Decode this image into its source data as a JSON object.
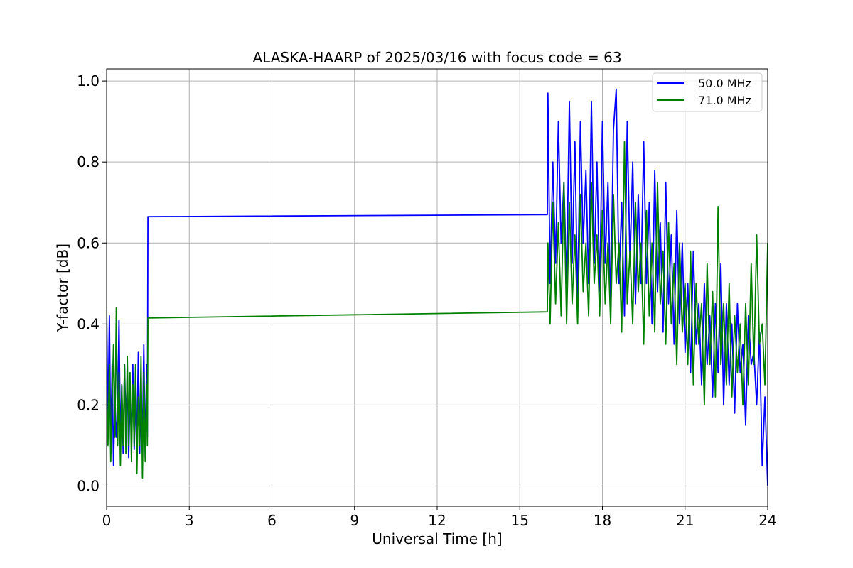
{
  "chart_data": {
    "type": "line",
    "title": "ALASKA-HAARP of 2025/03/16 with focus code = 63",
    "xlabel": "Universal Time [h]",
    "ylabel": "Y-factor [dB]",
    "xlim": [
      0,
      24
    ],
    "ylim": [
      -0.05,
      1.03
    ],
    "xticks": [
      0,
      3,
      6,
      9,
      12,
      15,
      18,
      21,
      24
    ],
    "xtick_labels": [
      "0",
      "3",
      "6",
      "9",
      "12",
      "15",
      "18",
      "21",
      "24"
    ],
    "yticks": [
      0.0,
      0.2,
      0.4,
      0.6,
      0.8,
      1.0
    ],
    "ytick_labels": [
      "0.0",
      "0.2",
      "0.4",
      "0.6",
      "0.8",
      "1.0"
    ],
    "grid": true,
    "legend_position": "top-right",
    "series": [
      {
        "name": "50.0 MHz",
        "color": "#0000ff",
        "x": [
          0.0,
          0.05,
          0.1,
          0.15,
          0.2,
          0.25,
          0.3,
          0.35,
          0.4,
          0.45,
          0.5,
          0.55,
          0.6,
          0.65,
          0.7,
          0.75,
          0.8,
          0.85,
          0.9,
          0.95,
          1.0,
          1.05,
          1.1,
          1.15,
          1.2,
          1.25,
          1.3,
          1.35,
          1.4,
          1.45,
          1.48,
          1.5,
          1.52,
          16.0,
          16.02,
          16.1,
          16.2,
          16.3,
          16.4,
          16.5,
          16.6,
          16.7,
          16.8,
          16.9,
          17.0,
          17.1,
          17.2,
          17.3,
          17.4,
          17.5,
          17.6,
          17.7,
          17.8,
          17.9,
          18.0,
          18.1,
          18.2,
          18.3,
          18.4,
          18.5,
          18.6,
          18.7,
          18.8,
          18.9,
          19.0,
          19.1,
          19.2,
          19.3,
          19.4,
          19.5,
          19.6,
          19.7,
          19.8,
          19.9,
          20.0,
          20.1,
          20.2,
          20.3,
          20.4,
          20.5,
          20.6,
          20.7,
          20.8,
          20.9,
          21.0,
          21.1,
          21.2,
          21.3,
          21.4,
          21.5,
          21.6,
          21.7,
          21.8,
          21.9,
          22.0,
          22.1,
          22.2,
          22.3,
          22.4,
          22.5,
          22.6,
          22.7,
          22.8,
          22.9,
          23.0,
          23.1,
          23.2,
          23.3,
          23.4,
          23.5,
          23.6,
          23.7,
          23.8,
          23.9,
          24.0
        ],
        "y": [
          0.44,
          0.15,
          0.42,
          0.1,
          0.3,
          0.05,
          0.22,
          0.12,
          0.18,
          0.41,
          0.1,
          0.25,
          0.08,
          0.3,
          0.15,
          0.28,
          0.07,
          0.22,
          0.12,
          0.3,
          0.09,
          0.2,
          0.12,
          0.33,
          0.08,
          0.25,
          0.1,
          0.35,
          0.07,
          0.3,
          0.12,
          0.665,
          0.665,
          0.67,
          0.97,
          0.5,
          0.8,
          0.55,
          0.9,
          0.6,
          0.75,
          0.5,
          0.95,
          0.55,
          0.85,
          0.45,
          0.9,
          0.6,
          0.78,
          0.5,
          0.95,
          0.55,
          0.8,
          0.48,
          0.9,
          0.55,
          0.75,
          0.45,
          0.88,
          0.98,
          0.5,
          0.7,
          0.42,
          0.9,
          0.55,
          0.8,
          0.45,
          0.72,
          0.5,
          0.85,
          0.5,
          0.7,
          0.4,
          0.78,
          0.48,
          0.65,
          0.38,
          0.75,
          0.45,
          0.62,
          0.35,
          0.68,
          0.4,
          0.6,
          0.33,
          0.5,
          0.28,
          0.58,
          0.35,
          0.45,
          0.25,
          0.5,
          0.3,
          0.42,
          0.22,
          0.45,
          0.28,
          0.55,
          0.2,
          0.45,
          0.25,
          0.4,
          0.18,
          0.45,
          0.28,
          0.35,
          0.15,
          0.42,
          0.3,
          0.33,
          0.2,
          0.38,
          0.05,
          0.22,
          0.0
        ]
      },
      {
        "name": "71.0 MHz",
        "color": "#008000",
        "x": [
          0.0,
          0.05,
          0.1,
          0.15,
          0.2,
          0.25,
          0.3,
          0.35,
          0.4,
          0.45,
          0.5,
          0.55,
          0.6,
          0.65,
          0.7,
          0.75,
          0.8,
          0.85,
          0.9,
          0.95,
          1.0,
          1.05,
          1.1,
          1.15,
          1.2,
          1.25,
          1.3,
          1.35,
          1.4,
          1.45,
          1.48,
          1.5,
          1.52,
          16.0,
          16.02,
          16.1,
          16.2,
          16.3,
          16.4,
          16.5,
          16.6,
          16.7,
          16.8,
          16.9,
          17.0,
          17.1,
          17.2,
          17.3,
          17.4,
          17.5,
          17.6,
          17.7,
          17.8,
          17.9,
          18.0,
          18.1,
          18.2,
          18.3,
          18.4,
          18.5,
          18.6,
          18.7,
          18.8,
          18.9,
          19.0,
          19.1,
          19.2,
          19.3,
          19.4,
          19.5,
          19.6,
          19.7,
          19.8,
          19.9,
          20.0,
          20.1,
          20.2,
          20.3,
          20.4,
          20.5,
          20.6,
          20.7,
          20.8,
          20.9,
          21.0,
          21.1,
          21.2,
          21.3,
          21.4,
          21.5,
          21.6,
          21.7,
          21.8,
          21.9,
          22.0,
          22.1,
          22.2,
          22.3,
          22.4,
          22.5,
          22.6,
          22.7,
          22.8,
          22.9,
          23.0,
          23.1,
          23.2,
          23.3,
          23.4,
          23.5,
          23.6,
          23.7,
          23.8,
          23.9,
          24.0
        ],
        "y": [
          0.25,
          0.1,
          0.3,
          0.06,
          0.22,
          0.35,
          0.12,
          0.44,
          0.1,
          0.28,
          0.05,
          0.25,
          0.1,
          0.3,
          0.08,
          0.32,
          0.1,
          0.28,
          0.06,
          0.25,
          0.1,
          0.3,
          0.03,
          0.22,
          0.1,
          0.32,
          0.02,
          0.28,
          0.06,
          0.25,
          0.1,
          0.415,
          0.415,
          0.43,
          0.6,
          0.4,
          0.7,
          0.45,
          0.65,
          0.42,
          0.75,
          0.4,
          0.7,
          0.45,
          0.62,
          0.4,
          0.72,
          0.48,
          0.6,
          0.42,
          0.75,
          0.5,
          0.62,
          0.42,
          0.68,
          0.45,
          0.6,
          0.4,
          0.72,
          0.5,
          0.6,
          0.38,
          0.85,
          0.45,
          0.58,
          0.4,
          0.7,
          0.48,
          0.6,
          0.35,
          0.68,
          0.42,
          0.6,
          0.38,
          0.75,
          0.45,
          0.58,
          0.35,
          0.65,
          0.4,
          0.55,
          0.3,
          0.6,
          0.38,
          0.5,
          0.3,
          0.58,
          0.25,
          0.5,
          0.35,
          0.45,
          0.2,
          0.55,
          0.3,
          0.48,
          0.22,
          0.69,
          0.3,
          0.45,
          0.25,
          0.5,
          0.22,
          0.42,
          0.28,
          0.4,
          0.2,
          0.45,
          0.25,
          0.55,
          0.3,
          0.62,
          0.35,
          0.4,
          0.25,
          0.6
        ]
      }
    ]
  }
}
